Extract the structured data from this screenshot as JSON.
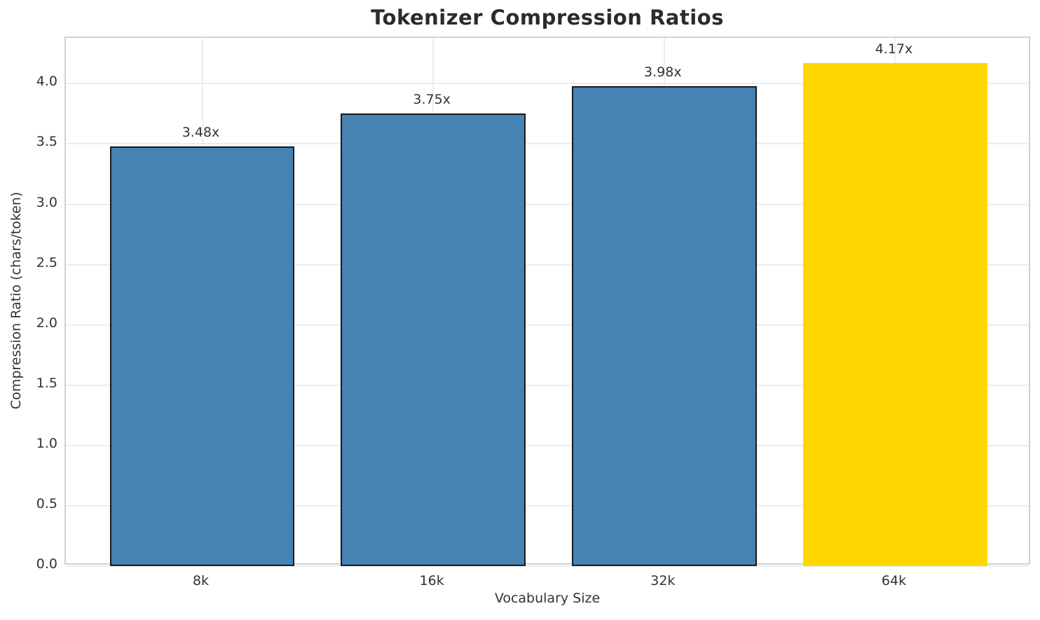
{
  "chart_data": {
    "type": "bar",
    "title": "Tokenizer Compression Ratios",
    "xlabel": "Vocabulary Size",
    "ylabel": "Compression Ratio (chars/token)",
    "categories": [
      "8k",
      "16k",
      "32k",
      "64k"
    ],
    "values": [
      3.48,
      3.75,
      3.98,
      4.17
    ],
    "bar_labels": [
      "3.48x",
      "3.75x",
      "3.98x",
      "4.17x"
    ],
    "bar_colors": [
      "#4682b4",
      "#4682b4",
      "#4682b4",
      "#ffd700"
    ],
    "bar_edge_colors": [
      "#1a1a1a",
      "#1a1a1a",
      "#1a1a1a",
      "#ffd700"
    ],
    "y_ticks": [
      0,
      0.5,
      1,
      1.5,
      2,
      2.5,
      3,
      3.5,
      4
    ],
    "y_tick_labels": [
      "0.0",
      "0.5",
      "1.0",
      "1.5",
      "2.0",
      "2.5",
      "3.0",
      "3.5",
      "4.0"
    ],
    "ylim": [
      0,
      4.38
    ],
    "xlim": [
      -0.59,
      3.59
    ],
    "bar_width_units": 0.8,
    "grid": true,
    "legend_position": "none",
    "colors": {
      "bar_default": "#4682b4",
      "bar_highlight": "#ffd700",
      "grid": "#ededed",
      "spine": "#d2d2d2",
      "text": "#333333",
      "title": "#2b2b2b"
    }
  }
}
